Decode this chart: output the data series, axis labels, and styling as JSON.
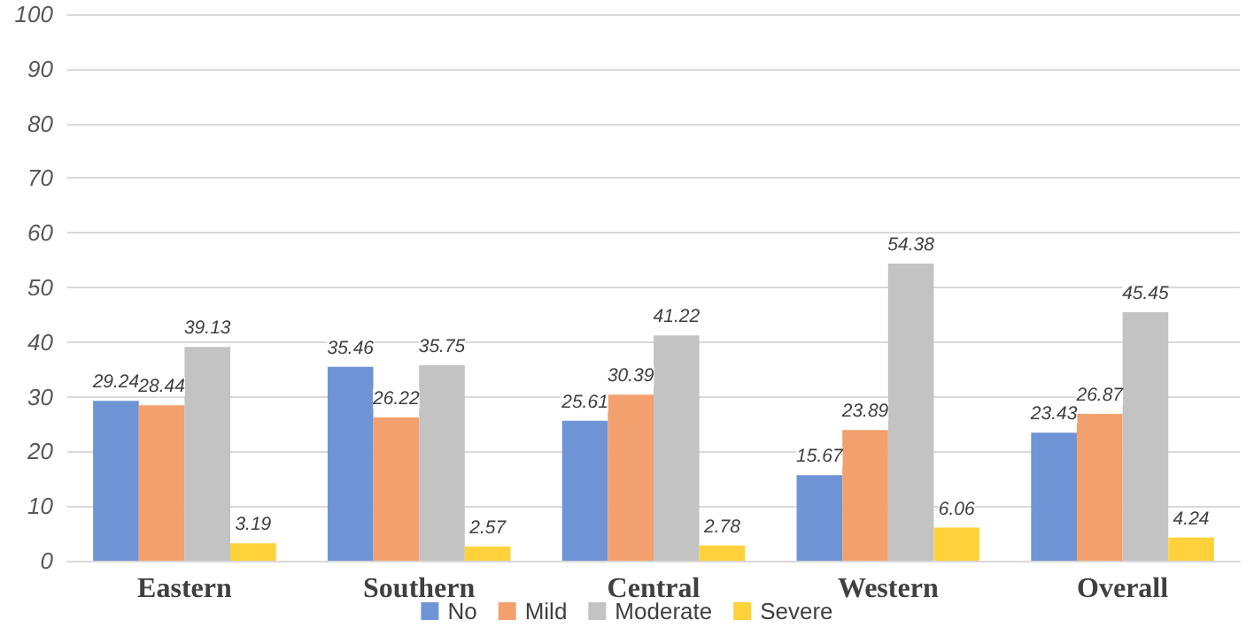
{
  "chart_data": {
    "type": "bar",
    "categories": [
      "Eastern",
      "Southern",
      "Central",
      "Western",
      "Overall"
    ],
    "series": [
      {
        "name": "No",
        "color": "#6f94d6",
        "values": [
          29.24,
          35.46,
          25.61,
          15.67,
          23.43
        ]
      },
      {
        "name": "Mild",
        "color": "#f2a06d",
        "values": [
          28.44,
          26.22,
          30.39,
          23.89,
          26.87
        ]
      },
      {
        "name": "Moderate",
        "color": "#c3c3c3",
        "values": [
          39.13,
          35.75,
          41.22,
          54.38,
          45.45
        ]
      },
      {
        "name": "Severe",
        "color": "#ffd13b",
        "values": [
          3.19,
          2.57,
          2.78,
          6.06,
          4.24
        ]
      }
    ],
    "ylim": [
      0,
      100
    ],
    "yticks": [
      0,
      10,
      20,
      30,
      40,
      50,
      60,
      70,
      80,
      90,
      100
    ],
    "grid": "y",
    "legend": "bottom",
    "data_labels": true
  }
}
